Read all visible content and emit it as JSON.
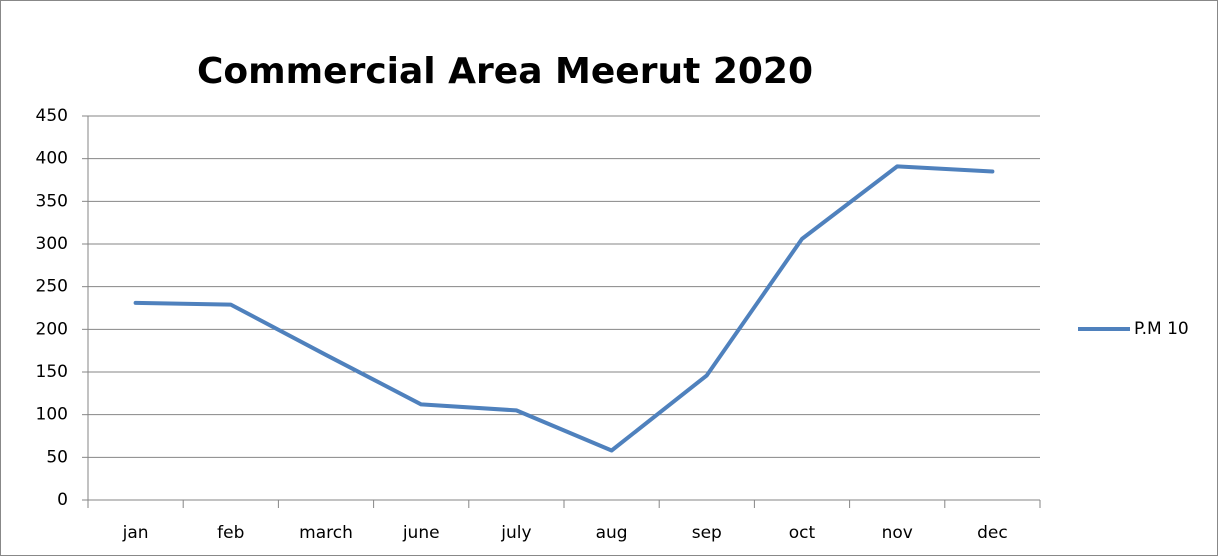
{
  "chart_data": {
    "type": "line",
    "title": "Commercial Area Meerut 2020",
    "categories": [
      "jan",
      "feb",
      "march",
      "june",
      "july",
      "aug",
      "sep",
      "oct",
      "nov",
      "dec"
    ],
    "series": [
      {
        "name": "P.M 10",
        "color": "#4f81bd",
        "values": [
          231,
          229,
          170,
          112,
          105,
          58,
          146,
          306,
          391,
          385
        ]
      }
    ],
    "ylim": [
      0,
      450
    ],
    "yticks": [
      0,
      50,
      100,
      150,
      200,
      250,
      300,
      350,
      400,
      450
    ],
    "grid": true,
    "legend": "right"
  }
}
